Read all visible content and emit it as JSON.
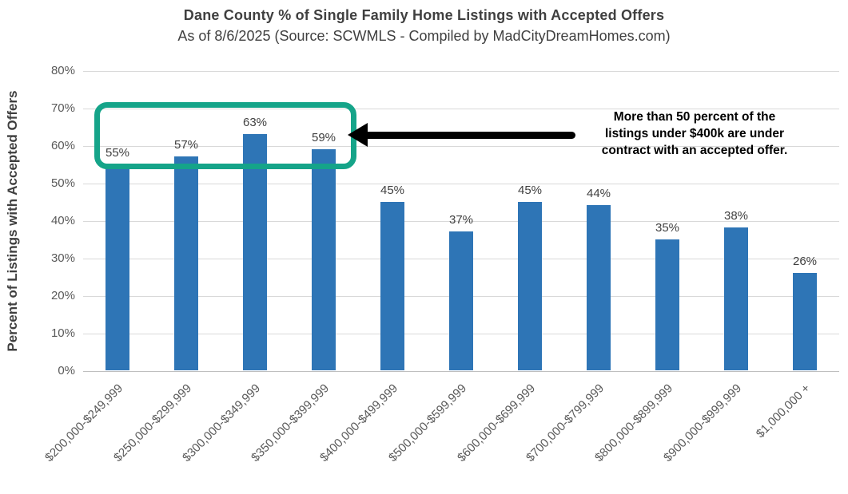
{
  "chart_data": {
    "type": "bar",
    "title": "Dane County % of Single Family Home Listings with Accepted Offers",
    "subtitle": "As of 8/6/2025 (Source: SCWMLS - Compiled by MadCityDreamHomes.com)",
    "ylabel": "Percent of Listings with Accepted Offers",
    "xlabel": "",
    "categories": [
      "$200,000-$249,999",
      "$250,000-$299,999",
      "$300,000-$349,999",
      "$350,000-$399,999",
      "$400,000-$499,999",
      "$500,000-$599,999",
      "$600,000-$699,999",
      "$700,000-$799,999",
      "$800,000-$899,999",
      "$900,000-$999,999",
      "$1,000,000 +"
    ],
    "values": [
      55,
      57,
      63,
      59,
      45,
      37,
      45,
      44,
      35,
      38,
      26
    ],
    "value_suffix": "%",
    "ylim": [
      0,
      80
    ],
    "y_ticks": [
      0,
      10,
      20,
      30,
      40,
      50,
      60,
      70,
      80
    ],
    "y_tick_suffix": "%",
    "grid": "horizontal",
    "legend": "none",
    "colors": {
      "bar": "#2e75b6",
      "highlight_box": "#15a489",
      "arrow": "#000000",
      "gridline": "#d9d9d9",
      "axis_line": "#bfbfbf",
      "title_text": "#404040",
      "tick_text": "#595959"
    },
    "annotation": {
      "text": "More than 50 percent of the\nlistings under $400k are under\ncontract with an accepted offer.",
      "highlighted_categories": [
        "$200,000-$249,999",
        "$250,000-$299,999",
        "$300,000-$349,999",
        "$350,000-$399,999"
      ]
    }
  }
}
